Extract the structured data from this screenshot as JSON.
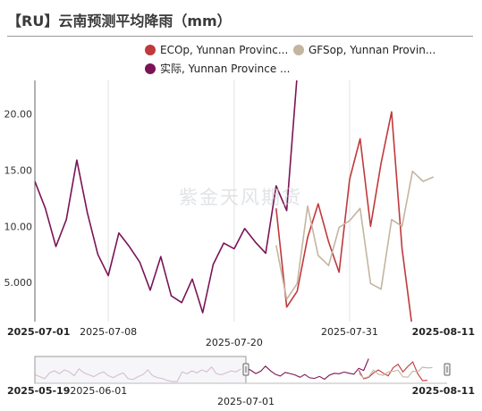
{
  "title": "【RU】云南预测平均降雨（mm）",
  "watermark": "紫金天风期货",
  "chart_data": {
    "type": "line",
    "title": "【RU】云南预测平均降雨（mm）",
    "xlabel": "",
    "ylabel": "",
    "ylim": [
      1.5,
      23
    ],
    "y_ticks": [
      "20.00",
      "15.00",
      "10.00",
      "5.000"
    ],
    "y_tick_values": [
      20,
      15,
      10,
      5
    ],
    "x_range": [
      "2025-07-01",
      "2025-08-11"
    ],
    "x_tick_labels": [
      {
        "label": "2025-07-01",
        "date": "2025-07-01",
        "row": 0,
        "bold": true
      },
      {
        "label": "2025-07-08",
        "date": "2025-07-08",
        "row": 0,
        "bold": false
      },
      {
        "label": "2025-07-20",
        "date": "2025-07-20",
        "row": 1,
        "bold": false
      },
      {
        "label": "2025-07-31",
        "date": "2025-07-31",
        "row": 0,
        "bold": false
      },
      {
        "label": "2025-08-11",
        "date": "2025-08-11",
        "row": 0,
        "bold": true
      }
    ],
    "legend_position": "top-right",
    "grid": "vertical",
    "series": [
      {
        "name": "ECOp, Yunnan Provinc...",
        "color": "#c0393b",
        "points": [
          {
            "x": "2025-07-24",
            "y": 11.6
          },
          {
            "x": "2025-07-25",
            "y": 2.8
          },
          {
            "x": "2025-07-26",
            "y": 4.2
          },
          {
            "x": "2025-07-27",
            "y": 9.0
          },
          {
            "x": "2025-07-28",
            "y": 12.0
          },
          {
            "x": "2025-07-29",
            "y": 8.6
          },
          {
            "x": "2025-07-30",
            "y": 5.9
          },
          {
            "x": "2025-07-31",
            "y": 14.2
          },
          {
            "x": "2025-08-01",
            "y": 17.8
          },
          {
            "x": "2025-08-02",
            "y": 10.0
          },
          {
            "x": "2025-08-03",
            "y": 15.6
          },
          {
            "x": "2025-08-04",
            "y": 20.2
          },
          {
            "x": "2025-08-05",
            "y": 8.0
          },
          {
            "x": "2025-08-06",
            "y": 0.8
          },
          {
            "x": "2025-08-07",
            "y": 1.2
          }
        ]
      },
      {
        "name": "GFSop, Yunnan Provin...",
        "color": "#c4b5a0",
        "points": [
          {
            "x": "2025-07-24",
            "y": 8.3
          },
          {
            "x": "2025-07-25",
            "y": 3.5
          },
          {
            "x": "2025-07-26",
            "y": 4.9
          },
          {
            "x": "2025-07-27",
            "y": 11.8
          },
          {
            "x": "2025-07-28",
            "y": 7.4
          },
          {
            "x": "2025-07-29",
            "y": 6.5
          },
          {
            "x": "2025-07-30",
            "y": 9.9
          },
          {
            "x": "2025-07-31",
            "y": 10.5
          },
          {
            "x": "2025-08-01",
            "y": 11.6
          },
          {
            "x": "2025-08-02",
            "y": 4.9
          },
          {
            "x": "2025-08-03",
            "y": 4.4
          },
          {
            "x": "2025-08-04",
            "y": 10.6
          },
          {
            "x": "2025-08-05",
            "y": 10.0
          },
          {
            "x": "2025-08-06",
            "y": 14.9
          },
          {
            "x": "2025-08-07",
            "y": 14.0
          },
          {
            "x": "2025-08-08",
            "y": 14.4
          }
        ]
      },
      {
        "name": "实际, Yunnan Province ...",
        "color": "#7a1456",
        "points": [
          {
            "x": "2025-07-01",
            "y": 14.0
          },
          {
            "x": "2025-07-02",
            "y": 11.6
          },
          {
            "x": "2025-07-03",
            "y": 8.2
          },
          {
            "x": "2025-07-04",
            "y": 10.6
          },
          {
            "x": "2025-07-05",
            "y": 15.9
          },
          {
            "x": "2025-07-06",
            "y": 11.2
          },
          {
            "x": "2025-07-07",
            "y": 7.5
          },
          {
            "x": "2025-07-08",
            "y": 5.6
          },
          {
            "x": "2025-07-09",
            "y": 9.4
          },
          {
            "x": "2025-07-10",
            "y": 8.2
          },
          {
            "x": "2025-07-11",
            "y": 6.8
          },
          {
            "x": "2025-07-12",
            "y": 4.3
          },
          {
            "x": "2025-07-13",
            "y": 7.3
          },
          {
            "x": "2025-07-14",
            "y": 3.8
          },
          {
            "x": "2025-07-15",
            "y": 3.2
          },
          {
            "x": "2025-07-16",
            "y": 5.3
          },
          {
            "x": "2025-07-17",
            "y": 2.3
          },
          {
            "x": "2025-07-18",
            "y": 6.6
          },
          {
            "x": "2025-07-19",
            "y": 8.5
          },
          {
            "x": "2025-07-20",
            "y": 8.0
          },
          {
            "x": "2025-07-21",
            "y": 9.8
          },
          {
            "x": "2025-07-22",
            "y": 8.6
          },
          {
            "x": "2025-07-23",
            "y": 7.6
          },
          {
            "x": "2025-07-24",
            "y": 13.6
          },
          {
            "x": "2025-07-25",
            "y": 11.4
          },
          {
            "x": "2025-07-26",
            "y": 23.5
          }
        ]
      }
    ],
    "navigator": {
      "x_range": [
        "2025-05-19",
        "2025-08-11"
      ],
      "selected_range": [
        "2025-05-19",
        "2025-07-01"
      ],
      "labels": [
        {
          "label": "2025-05-19",
          "date": "2025-05-19",
          "row": 0,
          "bold": true
        },
        {
          "label": "2025-06-01",
          "date": "2025-06-01",
          "row": 0,
          "bold": false
        },
        {
          "label": "2025-07-01",
          "date": "2025-07-01",
          "row": 1,
          "bold": false
        },
        {
          "label": "2025-08-11",
          "date": "2025-08-11",
          "row": 0,
          "bold": true
        }
      ],
      "history_series": {
        "color": "#7a1456",
        "start": "2025-05-19",
        "values": [
          7,
          5,
          3,
          9,
          11,
          8,
          12,
          10,
          6,
          13,
          9,
          7,
          5,
          8,
          10,
          6,
          4,
          7,
          9,
          3,
          2,
          5,
          7,
          12,
          6,
          4,
          3,
          1,
          0,
          0,
          10,
          8,
          11,
          9,
          12,
          10,
          15,
          8,
          7,
          9,
          11,
          10,
          13
        ]
      }
    }
  }
}
